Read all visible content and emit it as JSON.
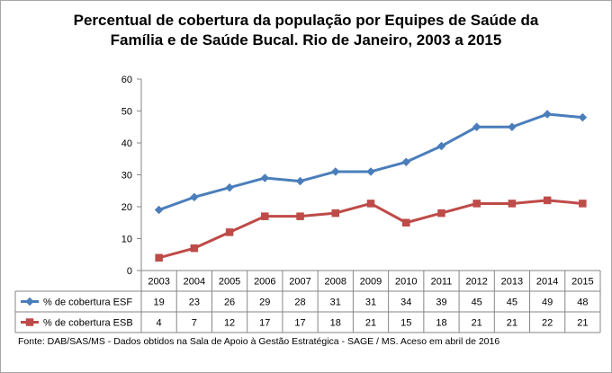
{
  "chart_data": {
    "type": "line",
    "title_lines": [
      "Percentual de cobertura da população por Equipes de Saúde da",
      "Família e de Saúde Bucal. Rio de Janeiro, 2003 a 2015"
    ],
    "categories": [
      "2003",
      "2004",
      "2005",
      "2006",
      "2007",
      "2008",
      "2009",
      "2010",
      "2011",
      "2012",
      "2013",
      "2014",
      "2015"
    ],
    "series": [
      {
        "name": "% de cobertura ESF",
        "values": [
          19,
          23,
          26,
          29,
          28,
          31,
          31,
          34,
          39,
          45,
          45,
          49,
          48
        ],
        "color": "#4a7ebb",
        "marker": "diamond"
      },
      {
        "name": "% de cobertura ESB",
        "values": [
          4,
          7,
          12,
          17,
          17,
          18,
          21,
          15,
          18,
          21,
          21,
          22,
          21
        ],
        "color": "#be4b48",
        "marker": "square"
      }
    ],
    "y_ticks": [
      0,
      10,
      20,
      30,
      40,
      50,
      60
    ],
    "ylim": [
      0,
      60
    ],
    "grid": false,
    "data_table": true,
    "legend": "in data table",
    "source": "Fonte:  DAB/SAS/MS - Dados obtidos na Sala de Apoio à Gestão Estratégica - SAGE / MS. Aceso em abril de  2016"
  }
}
